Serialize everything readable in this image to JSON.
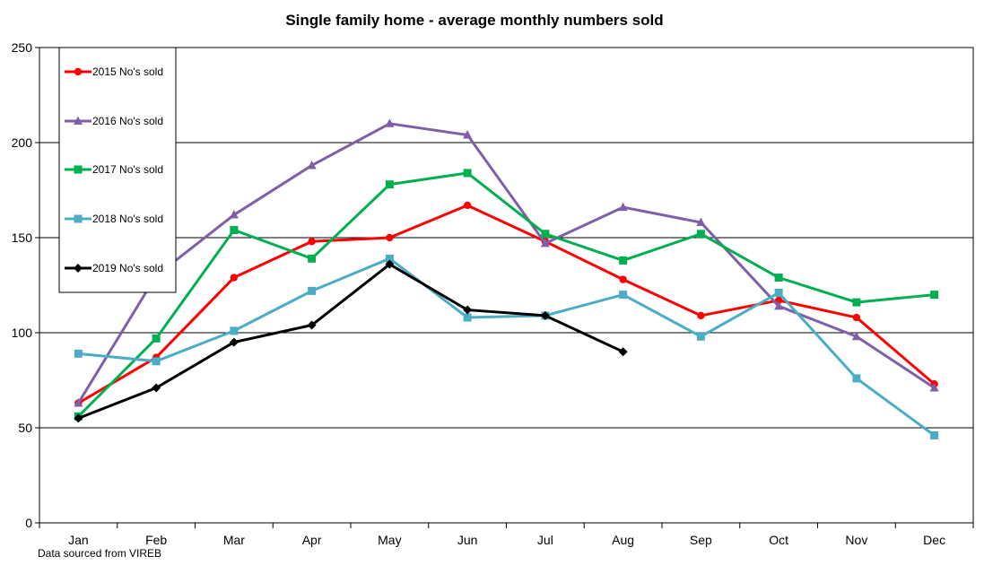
{
  "chart_data": {
    "type": "line",
    "title": "Single family home - average monthly numbers sold",
    "xlabel": "",
    "ylabel": "",
    "ylim": [
      0,
      250
    ],
    "yticks": [
      0,
      50,
      100,
      150,
      200,
      250
    ],
    "grid": true,
    "legend_position": "top-left",
    "categories": [
      "Jan",
      "Feb",
      "Mar",
      "Apr",
      "May",
      "Jun",
      "Jul",
      "Aug",
      "Sep",
      "Oct",
      "Nov",
      "Dec"
    ],
    "series": [
      {
        "name": "2015 No's sold",
        "color": "#ff0000",
        "marker": "circle",
        "values": [
          63,
          87,
          129,
          148,
          150,
          167,
          148,
          128,
          109,
          117,
          108,
          73
        ]
      },
      {
        "name": "2016 No's sold",
        "color": "#7f5fa7",
        "marker": "triangle",
        "values": [
          63,
          130,
          162,
          188,
          210,
          204,
          147,
          166,
          158,
          114,
          98,
          71
        ]
      },
      {
        "name": "2017 No's sold",
        "color": "#00b050",
        "marker": "square",
        "values": [
          56,
          97,
          154,
          139,
          178,
          184,
          152,
          138,
          152,
          129,
          116,
          120
        ]
      },
      {
        "name": "2018 No's sold",
        "color": "#4bacc6",
        "marker": "square",
        "values": [
          89,
          85,
          101,
          122,
          139,
          108,
          109,
          120,
          98,
          121,
          76,
          46
        ]
      },
      {
        "name": "2019 No's sold",
        "color": "#000000",
        "marker": "diamond",
        "values": [
          55,
          71,
          95,
          104,
          136,
          112,
          109,
          90,
          null,
          null,
          null,
          null
        ]
      }
    ],
    "source_note": "Data sourced from VIREB"
  }
}
